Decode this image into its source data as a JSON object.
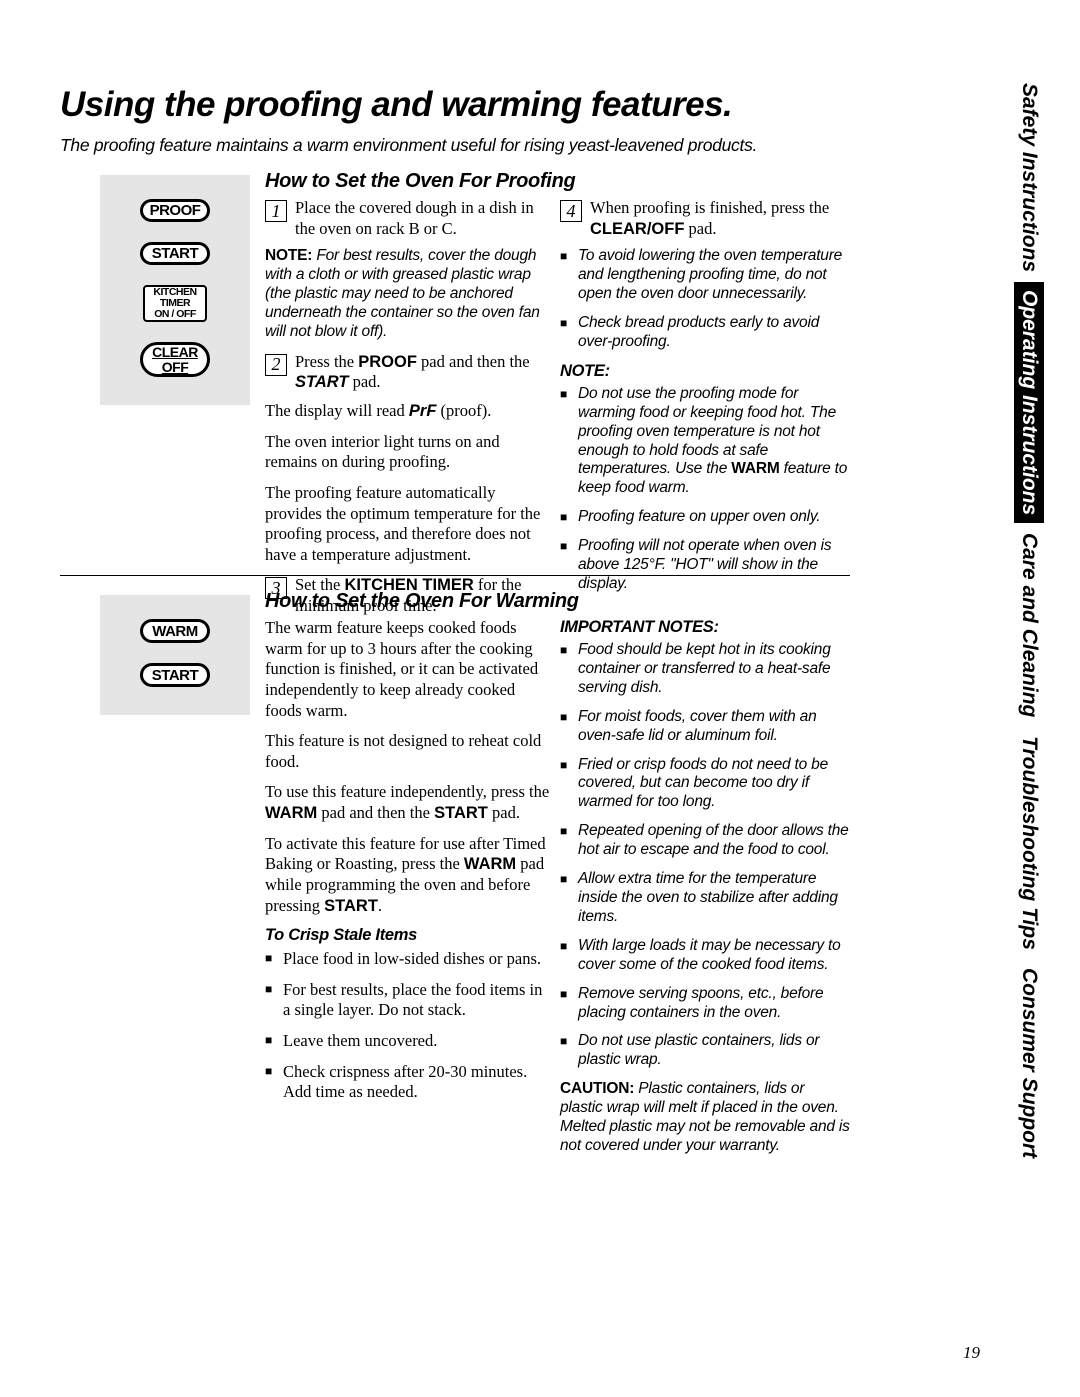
{
  "title": "Using the proofing and warming features.",
  "intro": "The proofing feature maintains a warm environment useful for rising yeast-leavened products.",
  "page_number": "19",
  "buttons": {
    "proof": "PROOF",
    "start": "START",
    "timer_l1": "KITCHEN",
    "timer_l2": "TIMER",
    "timer_l3": "ON / OFF",
    "clear_l1": "CLEAR",
    "clear_l2": "OFF",
    "warm": "WARM"
  },
  "tabs": {
    "safety": "Safety Instructions",
    "operating": "Operating Instructions",
    "care": "Care and Cleaning",
    "troubleshooting": "Troubleshooting Tips",
    "consumer": "Consumer Support"
  },
  "proofing": {
    "heading": "How to Set the Oven For Proofing",
    "step1": "Place the covered dough in a dish in the oven on rack B or C.",
    "note1_html": "<b class='sans'>NOTE:</b> For best results, cover the dough with a cloth or with greased plastic wrap (the plastic may need to be anchored underneath the container so the oven fan will not blow it off).",
    "step2_html": "Press the <b class='sans'>PROOF</b> pad and then the <b class='sans'><i>START</i></b> pad.",
    "display_html": "The display will read <b class='sans'><i>PrF</i></b> (proof).",
    "light": "The oven interior light turns on and remains on during proofing.",
    "auto": "The proofing feature automatically provides the optimum temperature for the proofing process, and therefore does not have a temperature adjustment.",
    "step3_html": "Set the <b class='sans'>KITCHEN TIMER</b> for the minimum proof time.",
    "step4_html": "When proofing is finished, press the <b class='sans'>CLEAR/OFF</b> pad.",
    "b1": "To avoid lowering the oven temperature and lengthening proofing time, do not open the oven door unnecessarily.",
    "b2": "Check bread products early to avoid over-proofing.",
    "note_label": "NOTE:",
    "b3_html": "Do not use the proofing mode for warming food or keeping food hot. The proofing oven temperature is not hot enough to hold foods at safe temperatures. Use the <b class='sans'>WARM</b> feature to keep food warm.",
    "b4": "Proofing feature on upper oven only.",
    "b5": "Proofing will not operate when oven is above 125°F. \"HOT\" will show in the display."
  },
  "warming": {
    "heading": "How to Set the Oven For Warming",
    "p1": "The warm feature keeps cooked foods warm for up to 3 hours after the cooking function is finished, or it can be activated independently to keep already cooked foods warm.",
    "p2": "This feature is not designed to reheat cold food.",
    "p3_html": "To use this feature independently, press the <b class='sans'>WARM</b> pad and then the <b class='sans'>START</b> pad.",
    "p4_html": "To activate this feature for use after Timed Baking or Roasting, press the <b class='sans'>WARM</b> pad while programming the oven and before pressing <b class='sans'>START</b>.",
    "crisp_heading": "To Crisp Stale Items",
    "c1": "Place food in low-sided dishes or pans.",
    "c2": "For best results, place the food items in a single layer. Do not stack.",
    "c3": "Leave them uncovered.",
    "c4": "Check crispness after 20-30 minutes. Add time as needed.",
    "important_heading": "IMPORTANT NOTES:",
    "n1": "Food should be kept hot in its cooking container or transferred to a heat-safe serving dish.",
    "n2": "For moist foods, cover them with an oven-safe lid or aluminum foil.",
    "n3": "Fried or crisp foods do not need to be covered, but can become too dry if warmed for too long.",
    "n4": "Repeated opening of the door allows the hot air to escape and the food to cool.",
    "n5": "Allow extra time for the temperature inside the oven to stabilize after adding items.",
    "n6": "With large loads it may be necessary to cover some of the cooked food items.",
    "n7": "Remove serving spoons, etc., before placing containers in the oven.",
    "n8": "Do not use plastic containers, lids or plastic wrap.",
    "caution_html": "<b class='sans'>CAUTION:</b> Plastic containers, lids or plastic wrap will melt if placed in the oven. Melted plastic may not be removable and is not covered under your warranty."
  }
}
